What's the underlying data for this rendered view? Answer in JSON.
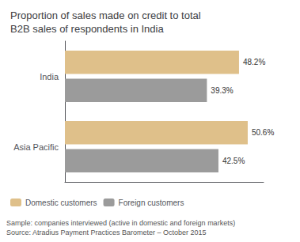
{
  "chart_data": {
    "type": "bar",
    "title": "Proportion of sales made on credit to total\nB2B sales of respondents in India",
    "orientation": "horizontal",
    "categories": [
      "India",
      "Asia Pacific"
    ],
    "series": [
      {
        "name": "Domestic customers",
        "color": "#dfc08a",
        "values": [
          48.2,
          50.6
        ],
        "value_labels": [
          "48.2%",
          "50.6%"
        ]
      },
      {
        "name": "Foreign customers",
        "color": "#9b9b9b",
        "values": [
          39.3,
          42.5
        ],
        "value_labels": [
          "39.3%",
          "42.5%"
        ]
      }
    ],
    "xlim": [
      0,
      55
    ],
    "data_labels": true,
    "grid": false,
    "legend": "bottom",
    "tick_labels": "y",
    "annotations": [
      "Sample: companies interviewed (active in domestic and foreign markets)",
      "Source: Atradius Payment Practices Barometer – October 2015"
    ]
  }
}
